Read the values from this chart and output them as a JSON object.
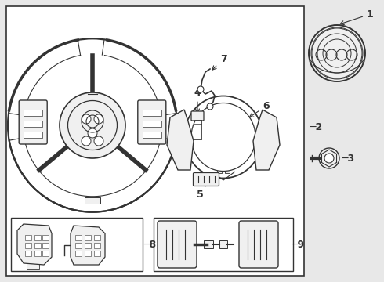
{
  "bg_color": "#e8e8e8",
  "line_color": "#333333",
  "white": "#ffffff",
  "light_fill": "#f0f0f0"
}
